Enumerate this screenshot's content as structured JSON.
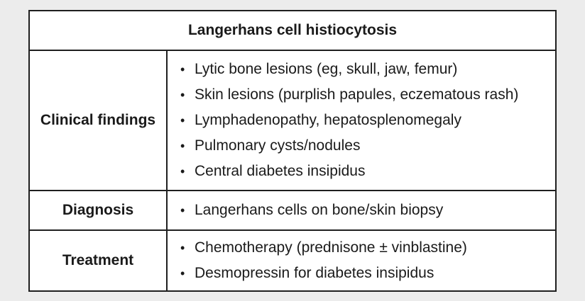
{
  "title": "Langerhans cell histiocytosis",
  "rows": [
    {
      "header": "Clinical findings",
      "items": [
        "Lytic bone lesions (eg, skull, jaw, femur)",
        "Skin lesions (purplish papules, eczematous rash)",
        "Lymphadenopathy, hepatosplenomegaly",
        "Pulmonary cysts/nodules",
        "Central diabetes insipidus"
      ]
    },
    {
      "header": "Diagnosis",
      "items": [
        "Langerhans cells on bone/skin biopsy"
      ]
    },
    {
      "header": "Treatment",
      "items": [
        "Chemotherapy (prednisone ± vinblastine)",
        "Desmopressin for diabetes insipidus"
      ]
    }
  ],
  "bullet_symbol": "•"
}
